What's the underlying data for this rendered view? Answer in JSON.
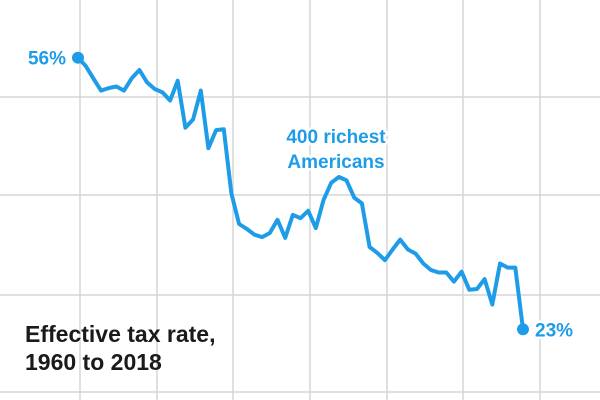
{
  "chart_data": {
    "type": "line",
    "title_lines": [
      "Effective tax rate,",
      "1960 to 2018"
    ],
    "xlabel": "",
    "ylabel": "",
    "xlim": [
      1960,
      2018
    ],
    "ylim": [
      20,
      59
    ],
    "grid": true,
    "color": "#1f9ce8",
    "series": [
      {
        "name": "400 richest Americans",
        "name_lines": [
          "400 richest",
          "Americans"
        ],
        "x": [
          1960,
          1961,
          1962,
          1963,
          1964,
          1965,
          1966,
          1967,
          1968,
          1969,
          1970,
          1971,
          1972,
          1973,
          1974,
          1975,
          1976,
          1977,
          1978,
          1979,
          1980,
          1981,
          1982,
          1983,
          1984,
          1985,
          1986,
          1987,
          1988,
          1989,
          1990,
          1991,
          1992,
          1993,
          1994,
          1995,
          1996,
          1997,
          1998,
          1999,
          2000,
          2001,
          2002,
          2003,
          2004,
          2005,
          2006,
          2007,
          2008,
          2009,
          2010,
          2011,
          2012,
          2013,
          2014,
          2015,
          2016,
          2017,
          2018
        ],
        "y": [
          56.0,
          55.0,
          53.5,
          52.0,
          52.3,
          52.5,
          52.0,
          53.5,
          54.5,
          53.0,
          52.2,
          51.8,
          50.8,
          53.2,
          47.5,
          48.5,
          52.0,
          45.0,
          47.2,
          47.3,
          39.5,
          35.8,
          35.2,
          34.5,
          34.2,
          34.7,
          36.3,
          34.1,
          36.9,
          36.5,
          37.4,
          35.3,
          38.7,
          40.8,
          41.5,
          41.1,
          39.0,
          38.3,
          33.0,
          32.3,
          31.4,
          32.7,
          33.9,
          32.7,
          32.2,
          31.0,
          30.2,
          29.9,
          29.9,
          28.8,
          30.0,
          27.8,
          27.9,
          29.1,
          26.0,
          31.0,
          30.5,
          30.5,
          23.0
        ]
      }
    ],
    "start_label": "56%",
    "end_label": "23%"
  }
}
